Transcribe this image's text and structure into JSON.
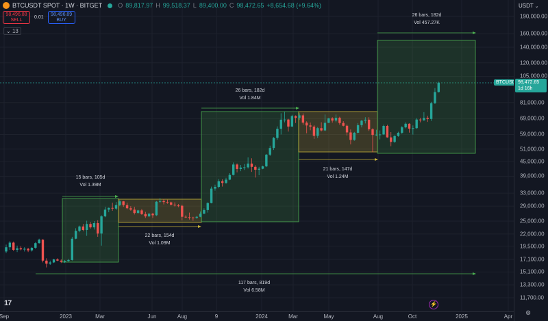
{
  "header": {
    "symbol": "BTCUSDT SPOT · 1W · BITGET",
    "ohlc": {
      "o_label": "O",
      "o": "89,817.97",
      "h_label": "H",
      "h": "99,518.37",
      "l_label": "L",
      "l": "89,400.00",
      "c_label": "C",
      "c": "98,472.65",
      "change": "+8,654.68 (+9.64%)"
    }
  },
  "trade": {
    "sell_price": "98,496.88",
    "sell_label": "SELL",
    "spread": "0.01",
    "buy_price": "98,496.89",
    "buy_label": "BUY"
  },
  "indicators_count": "13",
  "currency": "USDT",
  "price_ticks": [
    "190,000.00",
    "160,000.00",
    "140,000.00",
    "120,000.00",
    "105,000.00",
    "81,000.00",
    "69,000.00",
    "59,000.00",
    "51,000.00",
    "45,000.00",
    "39,000.00",
    "33,000.00",
    "29,000.00",
    "25,000.00",
    "22,000.00",
    "19,500.00",
    "17,100.00",
    "15,100.00",
    "13,300.00",
    "11,700.00"
  ],
  "time_ticks": [
    "Sep",
    "2023",
    "Mar",
    "Jun",
    "Aug",
    "9",
    "2024",
    "Mar",
    "May",
    "Aug",
    "Oct",
    "2025",
    "Apr"
  ],
  "last_price": {
    "price": "98,472.65",
    "countdown": "1d 16h",
    "symbol": "BTCUSDT"
  },
  "annotations": [
    {
      "bars": "15 bars, 105d",
      "vol": "Vol 1.39M"
    },
    {
      "bars": "22 bars, 154d",
      "vol": "Vol 1.09M"
    },
    {
      "bars": "26 bars, 182d",
      "vol": "Vol 1.84M"
    },
    {
      "bars": "21 bars, 147d",
      "vol": "Vol 1.24M"
    },
    {
      "bars": "26 bars, 182d",
      "vol": "Vol 457.27K"
    },
    {
      "bars": "117 bars, 819d",
      "vol": "Vol 6.58M"
    }
  ],
  "colors": {
    "up": "#26a69a",
    "down": "#ef5350",
    "green_box": "#4caf50",
    "yellow_box": "#c8b33a",
    "bg": "#131722"
  },
  "logo": "17",
  "chart_data": {
    "type": "candlestick",
    "series": [
      {
        "o": 18500,
        "h": 19800,
        "l": 18200,
        "c": 19300
      },
      {
        "o": 19300,
        "h": 20500,
        "l": 18800,
        "c": 20200
      },
      {
        "o": 20200,
        "h": 20400,
        "l": 18600,
        "c": 18800
      },
      {
        "o": 18800,
        "h": 19600,
        "l": 18400,
        "c": 19100
      },
      {
        "o": 19100,
        "h": 19500,
        "l": 18700,
        "c": 18900
      },
      {
        "o": 18900,
        "h": 19300,
        "l": 18500,
        "c": 19000
      },
      {
        "o": 19000,
        "h": 19200,
        "l": 18400,
        "c": 18700
      },
      {
        "o": 18700,
        "h": 19300,
        "l": 18500,
        "c": 19200
      },
      {
        "o": 19200,
        "h": 20300,
        "l": 19000,
        "c": 20100
      },
      {
        "o": 20100,
        "h": 21000,
        "l": 20000,
        "c": 20800
      },
      {
        "o": 20800,
        "h": 20900,
        "l": 16600,
        "c": 16900
      },
      {
        "o": 16900,
        "h": 17300,
        "l": 15800,
        "c": 16400
      },
      {
        "o": 16400,
        "h": 16900,
        "l": 16200,
        "c": 16600
      },
      {
        "o": 16600,
        "h": 17200,
        "l": 16500,
        "c": 17100
      },
      {
        "o": 17100,
        "h": 17300,
        "l": 16800,
        "c": 16900
      },
      {
        "o": 16900,
        "h": 17100,
        "l": 16500,
        "c": 16700
      },
      {
        "o": 16700,
        "h": 17000,
        "l": 16500,
        "c": 16850
      },
      {
        "o": 16850,
        "h": 17200,
        "l": 16700,
        "c": 17000
      },
      {
        "o": 17000,
        "h": 21400,
        "l": 16900,
        "c": 21000
      },
      {
        "o": 21000,
        "h": 23300,
        "l": 20900,
        "c": 22700
      },
      {
        "o": 22700,
        "h": 23900,
        "l": 22400,
        "c": 23700
      },
      {
        "o": 23700,
        "h": 24300,
        "l": 22600,
        "c": 22900
      },
      {
        "o": 22900,
        "h": 25100,
        "l": 21600,
        "c": 24300
      },
      {
        "o": 24300,
        "h": 24800,
        "l": 23200,
        "c": 23500
      },
      {
        "o": 23500,
        "h": 25000,
        "l": 23000,
        "c": 24500
      },
      {
        "o": 24500,
        "h": 25200,
        "l": 21400,
        "c": 22100
      },
      {
        "o": 22100,
        "h": 26500,
        "l": 19600,
        "c": 26200
      },
      {
        "o": 26200,
        "h": 28800,
        "l": 26000,
        "c": 28000
      },
      {
        "o": 28000,
        "h": 28600,
        "l": 27300,
        "c": 28500
      },
      {
        "o": 28500,
        "h": 30000,
        "l": 27700,
        "c": 28300
      },
      {
        "o": 28300,
        "h": 30200,
        "l": 27900,
        "c": 29300
      },
      {
        "o": 29300,
        "h": 30900,
        "l": 29000,
        "c": 30400
      },
      {
        "o": 30400,
        "h": 30500,
        "l": 28800,
        "c": 29300
      },
      {
        "o": 29300,
        "h": 30000,
        "l": 28100,
        "c": 28400
      },
      {
        "o": 28400,
        "h": 29000,
        "l": 27700,
        "c": 28000
      },
      {
        "o": 28000,
        "h": 28800,
        "l": 26700,
        "c": 27100
      },
      {
        "o": 27100,
        "h": 28000,
        "l": 26900,
        "c": 27800
      },
      {
        "o": 27800,
        "h": 28200,
        "l": 26600,
        "c": 26800
      },
      {
        "o": 26800,
        "h": 27400,
        "l": 25800,
        "c": 26200
      },
      {
        "o": 26200,
        "h": 27100,
        "l": 26000,
        "c": 26900
      },
      {
        "o": 26900,
        "h": 27100,
        "l": 25800,
        "c": 26500
      },
      {
        "o": 26500,
        "h": 30500,
        "l": 26300,
        "c": 30300
      },
      {
        "o": 30300,
        "h": 31400,
        "l": 29900,
        "c": 30500
      },
      {
        "o": 30500,
        "h": 31100,
        "l": 29500,
        "c": 30200
      },
      {
        "o": 30200,
        "h": 30900,
        "l": 29700,
        "c": 30100
      },
      {
        "o": 30100,
        "h": 30300,
        "l": 29200,
        "c": 29400
      },
      {
        "o": 29400,
        "h": 30100,
        "l": 28900,
        "c": 29200
      },
      {
        "o": 29200,
        "h": 29600,
        "l": 28700,
        "c": 29100
      },
      {
        "o": 29100,
        "h": 29400,
        "l": 25200,
        "c": 26100
      },
      {
        "o": 26100,
        "h": 26500,
        "l": 25800,
        "c": 26000
      },
      {
        "o": 26000,
        "h": 27200,
        "l": 25400,
        "c": 25900
      },
      {
        "o": 25900,
        "h": 26100,
        "l": 25100,
        "c": 25800
      },
      {
        "o": 25800,
        "h": 26300,
        "l": 25600,
        "c": 26100
      },
      {
        "o": 26100,
        "h": 27500,
        "l": 26000,
        "c": 26900
      },
      {
        "o": 26900,
        "h": 28400,
        "l": 26800,
        "c": 27900
      },
      {
        "o": 27900,
        "h": 30100,
        "l": 27200,
        "c": 29900
      },
      {
        "o": 29900,
        "h": 35200,
        "l": 29800,
        "c": 34500
      },
      {
        "o": 34500,
        "h": 35900,
        "l": 33800,
        "c": 35100
      },
      {
        "o": 35100,
        "h": 37900,
        "l": 34600,
        "c": 37100
      },
      {
        "o": 37100,
        "h": 37800,
        "l": 35200,
        "c": 36500
      },
      {
        "o": 36500,
        "h": 38400,
        "l": 36200,
        "c": 37700
      },
      {
        "o": 37700,
        "h": 40200,
        "l": 37500,
        "c": 39500
      },
      {
        "o": 39500,
        "h": 44700,
        "l": 39300,
        "c": 43800
      },
      {
        "o": 43800,
        "h": 44300,
        "l": 40500,
        "c": 41900
      },
      {
        "o": 41900,
        "h": 43600,
        "l": 41000,
        "c": 42500
      },
      {
        "o": 42500,
        "h": 44000,
        "l": 41500,
        "c": 42600
      },
      {
        "o": 42600,
        "h": 47000,
        "l": 42100,
        "c": 44200
      },
      {
        "o": 44200,
        "h": 46600,
        "l": 40700,
        "c": 42800
      },
      {
        "o": 42800,
        "h": 43500,
        "l": 38500,
        "c": 41600
      },
      {
        "o": 41600,
        "h": 42800,
        "l": 39400,
        "c": 42000
      },
      {
        "o": 42000,
        "h": 43300,
        "l": 41800,
        "c": 43000
      },
      {
        "o": 43000,
        "h": 48600,
        "l": 42700,
        "c": 48300
      },
      {
        "o": 48300,
        "h": 52800,
        "l": 47700,
        "c": 51600
      },
      {
        "o": 51600,
        "h": 57500,
        "l": 50600,
        "c": 57000
      },
      {
        "o": 57000,
        "h": 63900,
        "l": 56000,
        "c": 62400
      },
      {
        "o": 62400,
        "h": 72800,
        "l": 59000,
        "c": 68300
      },
      {
        "o": 68300,
        "h": 73800,
        "l": 66500,
        "c": 68400
      },
      {
        "o": 68400,
        "h": 68900,
        "l": 60700,
        "c": 63800
      },
      {
        "o": 63800,
        "h": 71700,
        "l": 63600,
        "c": 70800
      },
      {
        "o": 70800,
        "h": 71300,
        "l": 66100,
        "c": 69600
      },
      {
        "o": 69600,
        "h": 72800,
        "l": 68200,
        "c": 71300
      },
      {
        "o": 71300,
        "h": 72700,
        "l": 65000,
        "c": 66300
      },
      {
        "o": 66300,
        "h": 67200,
        "l": 59700,
        "c": 64500
      },
      {
        "o": 64500,
        "h": 66400,
        "l": 61500,
        "c": 63800
      },
      {
        "o": 63800,
        "h": 64700,
        "l": 56500,
        "c": 58200
      },
      {
        "o": 58200,
        "h": 63500,
        "l": 56900,
        "c": 62800
      },
      {
        "o": 62800,
        "h": 66600,
        "l": 60800,
        "c": 61400
      },
      {
        "o": 61400,
        "h": 71900,
        "l": 61000,
        "c": 66200
      },
      {
        "o": 66200,
        "h": 69500,
        "l": 66000,
        "c": 69200
      },
      {
        "o": 69200,
        "h": 70000,
        "l": 66300,
        "c": 67700
      },
      {
        "o": 67700,
        "h": 71900,
        "l": 66600,
        "c": 69600
      },
      {
        "o": 69600,
        "h": 70300,
        "l": 65000,
        "c": 66100
      },
      {
        "o": 66100,
        "h": 67300,
        "l": 63900,
        "c": 64300
      },
      {
        "o": 64300,
        "h": 65100,
        "l": 58400,
        "c": 60200
      },
      {
        "o": 60200,
        "h": 62000,
        "l": 53500,
        "c": 55900
      },
      {
        "o": 55900,
        "h": 60500,
        "l": 55400,
        "c": 60000
      },
      {
        "o": 60000,
        "h": 66000,
        "l": 59700,
        "c": 64700
      },
      {
        "o": 64700,
        "h": 68100,
        "l": 63300,
        "c": 67600
      },
      {
        "o": 67600,
        "h": 70000,
        "l": 65800,
        "c": 68300
      },
      {
        "o": 68300,
        "h": 70000,
        "l": 61100,
        "c": 62100
      },
      {
        "o": 62100,
        "h": 62700,
        "l": 49500,
        "c": 58700
      },
      {
        "o": 58700,
        "h": 61800,
        "l": 58100,
        "c": 58900
      },
      {
        "o": 58900,
        "h": 61400,
        "l": 56200,
        "c": 59000
      },
      {
        "o": 59000,
        "h": 65000,
        "l": 58700,
        "c": 64200
      },
      {
        "o": 64200,
        "h": 64900,
        "l": 57100,
        "c": 57300
      },
      {
        "o": 57300,
        "h": 60400,
        "l": 52500,
        "c": 54800
      },
      {
        "o": 54800,
        "h": 58500,
        "l": 54300,
        "c": 58100
      },
      {
        "o": 58100,
        "h": 60600,
        "l": 57700,
        "c": 60000
      },
      {
        "o": 60000,
        "h": 64100,
        "l": 59300,
        "c": 63300
      },
      {
        "o": 63300,
        "h": 66500,
        "l": 62700,
        "c": 65600
      },
      {
        "o": 65600,
        "h": 65900,
        "l": 60100,
        "c": 62500
      },
      {
        "o": 62500,
        "h": 64500,
        "l": 58900,
        "c": 62800
      },
      {
        "o": 62800,
        "h": 69400,
        "l": 62400,
        "c": 68400
      },
      {
        "o": 68400,
        "h": 69500,
        "l": 66500,
        "c": 67900
      },
      {
        "o": 67900,
        "h": 73600,
        "l": 67500,
        "c": 69500
      },
      {
        "o": 69500,
        "h": 71000,
        "l": 66800,
        "c": 68800
      },
      {
        "o": 68800,
        "h": 81500,
        "l": 67500,
        "c": 80400
      },
      {
        "o": 80400,
        "h": 93400,
        "l": 79800,
        "c": 89800
      },
      {
        "o": 89800,
        "h": 99500,
        "l": 89400,
        "c": 98500
      }
    ]
  }
}
